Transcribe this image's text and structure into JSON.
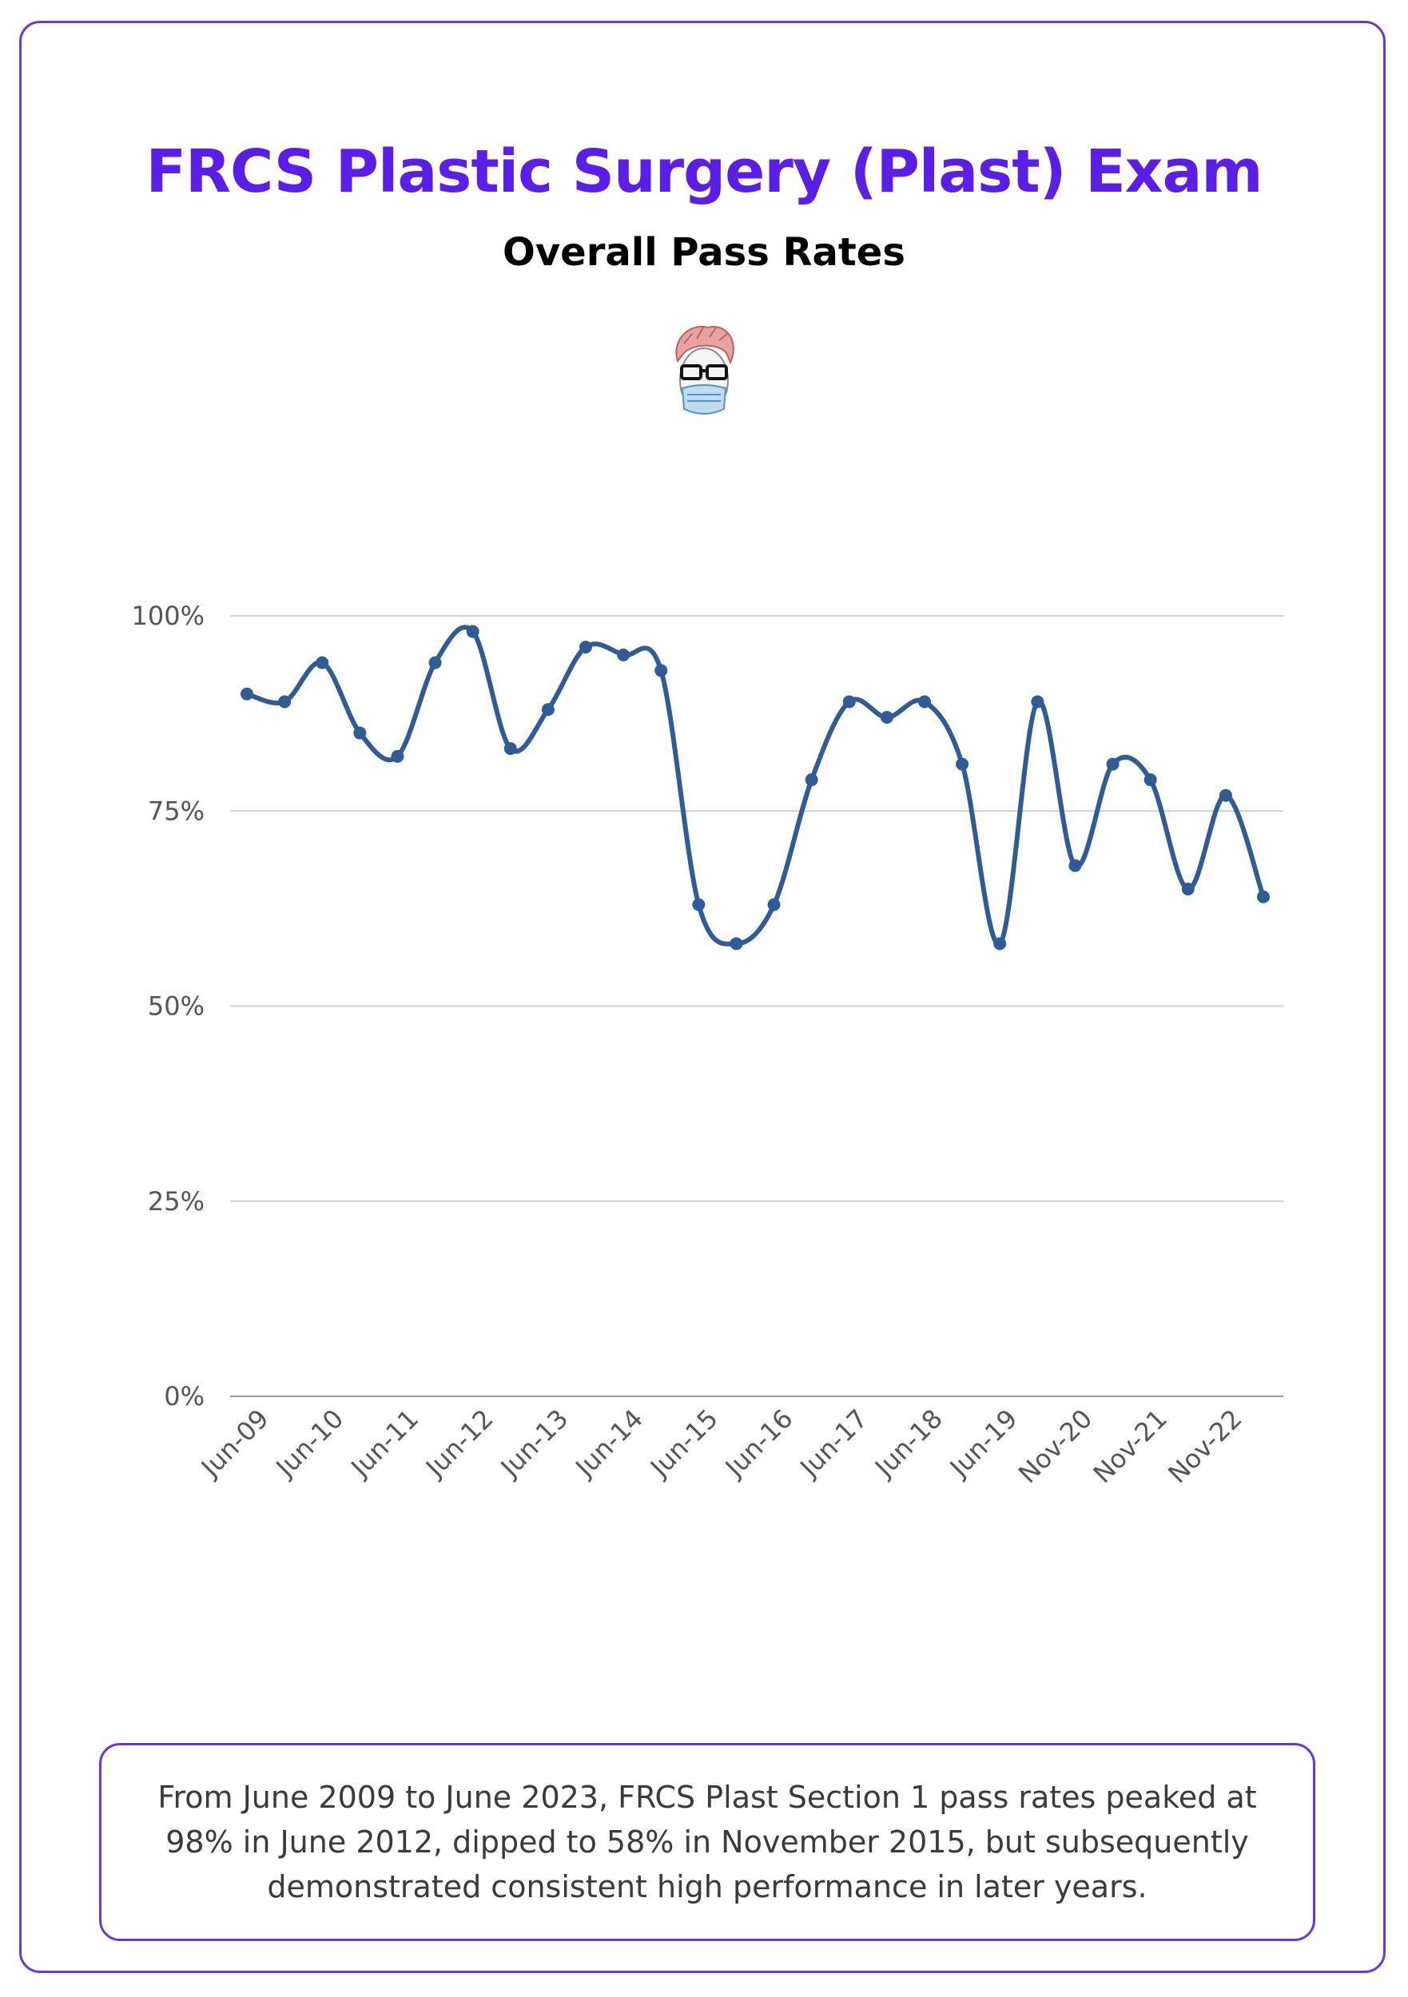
{
  "header": {
    "title": "FRCS Plastic Surgery (Plast) Exam",
    "subtitle": "Overall Pass Rates"
  },
  "colors": {
    "accent": "#5b1ee9",
    "border": "#6a35e8",
    "series": "#2f5b96",
    "grid": "#d0d0d0"
  },
  "icons": {
    "avatar": "doctor-with-mask-avatar-icon"
  },
  "chart_data": {
    "type": "line",
    "title": "FRCS Plastic Surgery (Plast) Exam",
    "subtitle": "Overall Pass Rates",
    "xlabel": "",
    "ylabel": "",
    "ylim": [
      0,
      100
    ],
    "yticks": [
      0,
      25,
      50,
      75,
      100
    ],
    "ytick_labels": [
      "0%",
      "25%",
      "50%",
      "75%",
      "100%"
    ],
    "xtick_labels": [
      "Jun-09",
      "Jun-10",
      "Jun-11",
      "Jun-12",
      "Jun-13",
      "Jun-14",
      "Jun-15",
      "Jun-16",
      "Jun-17",
      "Jun-18",
      "Jun-19",
      "Nov-20",
      "Nov-21",
      "Nov-22"
    ],
    "grid": true,
    "legend": "none",
    "smooth": true,
    "series": [
      {
        "name": "",
        "values": [
          90,
          89,
          94,
          85,
          82,
          94,
          98,
          83,
          88,
          96,
          95,
          93,
          63,
          58,
          63,
          79,
          89,
          87,
          89,
          81,
          58,
          89,
          68,
          81,
          79,
          65,
          77,
          64
        ]
      }
    ]
  },
  "caption": {
    "text": "From June 2009 to June 2023, FRCS Plast Section 1 pass rates peaked at 98% in June 2012, dipped to 58% in November 2015, but subsequently demonstrated consistent high performance in later years."
  }
}
